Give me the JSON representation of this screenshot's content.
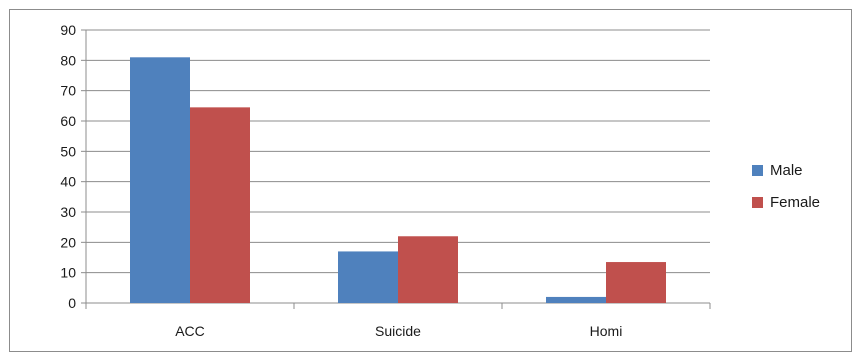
{
  "chart_data": {
    "type": "bar",
    "title": "",
    "xlabel": "",
    "ylabel": "",
    "categories": [
      "ACC",
      "Suicide",
      "Homi"
    ],
    "series": [
      {
        "name": "Male",
        "values": [
          81,
          17,
          2
        ],
        "color": "#4f81bd"
      },
      {
        "name": "Female",
        "values": [
          64.5,
          22,
          13.5
        ],
        "color": "#c0504d"
      }
    ],
    "ylim": [
      0,
      90
    ],
    "yticks": [
      0,
      10,
      20,
      30,
      40,
      50,
      60,
      70,
      80,
      90
    ],
    "grid": "horizontal",
    "legend_position": "right"
  }
}
